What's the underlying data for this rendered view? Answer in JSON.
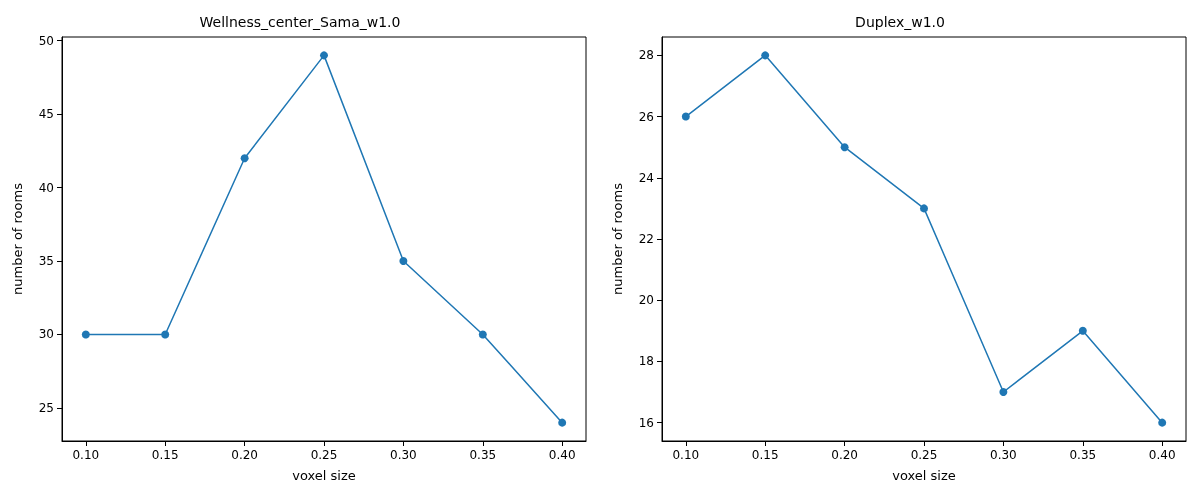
{
  "chart_data": [
    {
      "type": "line",
      "title": "Wellness_center_Sama_w1.0",
      "xlabel": "voxel size",
      "ylabel": "number of rooms",
      "x": [
        0.1,
        0.15,
        0.2,
        0.25,
        0.3,
        0.35,
        0.4
      ],
      "series": [
        {
          "color": "#1f77b4",
          "values": [
            30,
            30,
            42,
            49,
            35,
            30,
            24
          ]
        }
      ],
      "xlim": [
        0.085,
        0.415
      ],
      "xticks": [
        {
          "value": 0.1,
          "label": "0.10"
        },
        {
          "value": 0.15,
          "label": "0.15"
        },
        {
          "value": 0.2,
          "label": "0.20"
        },
        {
          "value": 0.25,
          "label": "0.25"
        },
        {
          "value": 0.3,
          "label": "0.30"
        },
        {
          "value": 0.35,
          "label": "0.35"
        },
        {
          "value": 0.4,
          "label": "0.40"
        }
      ],
      "ylim": [
        22.75,
        50.25
      ],
      "yticks": [
        25,
        30,
        35,
        40,
        45,
        50
      ],
      "marker": "circle",
      "line_style": "solid",
      "grid": false
    },
    {
      "type": "line",
      "title": "Duplex_w1.0",
      "xlabel": "voxel size",
      "ylabel": "number of rooms",
      "x": [
        0.1,
        0.15,
        0.2,
        0.25,
        0.3,
        0.35,
        0.4
      ],
      "series": [
        {
          "color": "#1f77b4",
          "values": [
            26,
            28,
            25,
            23,
            17,
            19,
            16
          ]
        }
      ],
      "xlim": [
        0.085,
        0.415
      ],
      "xticks": [
        {
          "value": 0.1,
          "label": "0.10"
        },
        {
          "value": 0.15,
          "label": "0.15"
        },
        {
          "value": 0.2,
          "label": "0.20"
        },
        {
          "value": 0.25,
          "label": "0.25"
        },
        {
          "value": 0.3,
          "label": "0.30"
        },
        {
          "value": 0.35,
          "label": "0.35"
        },
        {
          "value": 0.4,
          "label": "0.40"
        }
      ],
      "ylim": [
        15.4,
        28.6
      ],
      "yticks": [
        16,
        18,
        20,
        22,
        24,
        26,
        28
      ],
      "marker": "circle",
      "line_style": "solid",
      "grid": false
    }
  ]
}
